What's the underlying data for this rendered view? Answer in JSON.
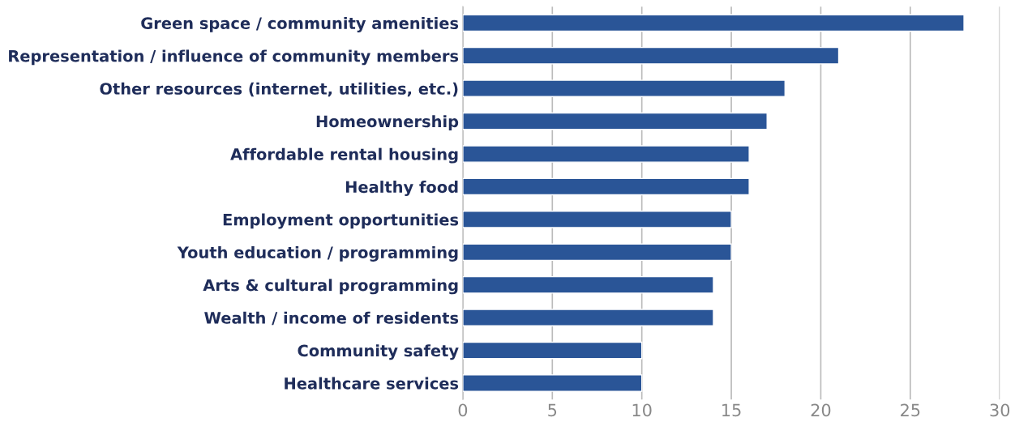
{
  "chart_data": {
    "type": "bar",
    "orientation": "horizontal",
    "categories": [
      "Green space / community amenities",
      "Representation / influence of community members",
      "Other resources (internet, utilities, etc.)",
      "Homeownership",
      "Affordable rental housing",
      "Healthy food",
      "Employment opportunities",
      "Youth education / programming",
      "Arts & cultural programming",
      "Wealth / income of residents",
      "Community safety",
      "Healthcare services"
    ],
    "values": [
      28,
      21,
      18,
      17,
      16,
      16,
      15,
      15,
      14,
      14,
      10,
      10
    ],
    "color": "#2a5597",
    "xlim": [
      0,
      30
    ],
    "xticks": [
      0,
      5,
      10,
      15,
      20,
      25,
      30
    ],
    "grid": "x",
    "legend": false
  }
}
